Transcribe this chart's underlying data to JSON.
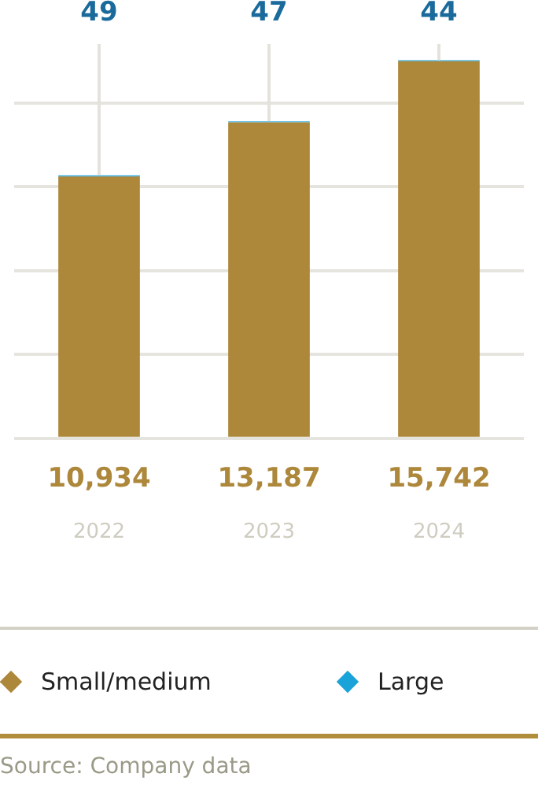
{
  "chart_data": {
    "type": "bar",
    "stacked": true,
    "categories": [
      "2022",
      "2023",
      "2024"
    ],
    "series": [
      {
        "name": "Small/medium",
        "color": "#ad873a",
        "values": [
          10934,
          13187,
          15742
        ],
        "value_labels": [
          "10,934",
          "13,187",
          "15,742"
        ]
      },
      {
        "name": "Large",
        "color": "#1aa3d9",
        "values": [
          49,
          47,
          44
        ],
        "value_labels": [
          "49",
          "47",
          "44"
        ]
      }
    ],
    "yticks": [
      {
        "value": 0,
        "label": null
      },
      {
        "value": 3500,
        "label": null
      },
      {
        "value": 7000,
        "label": null
      },
      {
        "value": 10500,
        "label": null
      },
      {
        "value": 14000,
        "label": null
      }
    ],
    "grid": "y",
    "tick_labels": "x",
    "legend": "bottom",
    "annotations": [
      "Source: Company data"
    ]
  }
}
